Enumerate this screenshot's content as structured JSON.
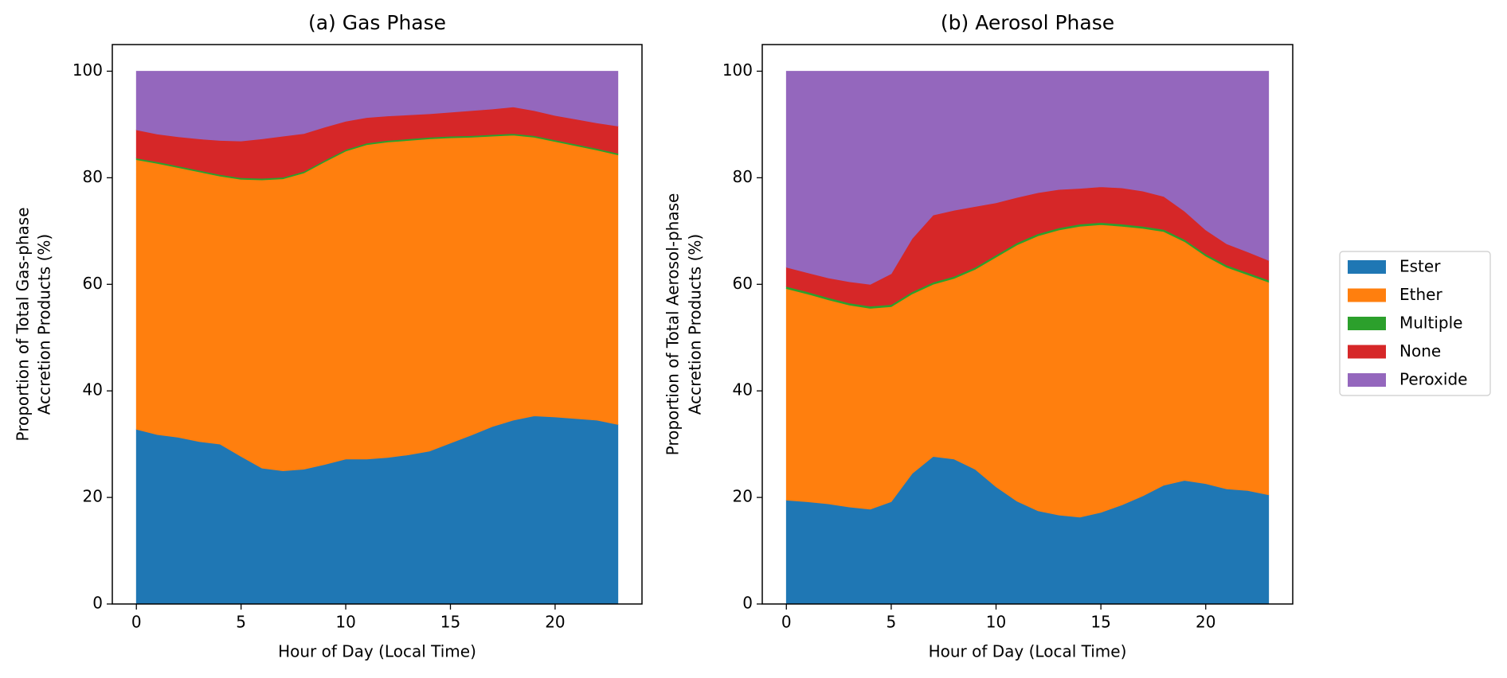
{
  "chart_data": [
    {
      "type": "stacked-area",
      "title": "(a) Gas Phase",
      "xlabel": "Hour of Day (Local Time)",
      "ylabel": [
        "Proportion of Total Gas-phase",
        "Accretion Products (%)"
      ],
      "x": [
        0,
        1,
        2,
        3,
        4,
        5,
        6,
        7,
        8,
        9,
        10,
        11,
        12,
        13,
        14,
        15,
        16,
        17,
        18,
        19,
        20,
        21,
        22,
        23
      ],
      "xlim": [
        -1.15,
        24.15
      ],
      "xticks": [
        0,
        5,
        10,
        15,
        20
      ],
      "ylim": [
        0,
        105
      ],
      "yticks": [
        0,
        20,
        40,
        60,
        80,
        100
      ],
      "series": [
        {
          "name": "Ester",
          "color": "#1f77b4",
          "values": [
            32.8,
            31.8,
            31.3,
            30.5,
            30.0,
            27.7,
            25.5,
            25.0,
            25.3,
            26.2,
            27.2,
            27.2,
            27.5,
            28.0,
            28.7,
            30.2,
            31.7,
            33.3,
            34.5,
            35.3,
            35.1,
            34.8,
            34.5,
            33.7
          ]
        },
        {
          "name": "Ether",
          "color": "#ff7f0e",
          "values": [
            50.6,
            50.9,
            50.6,
            50.6,
            50.3,
            52.0,
            54.1,
            54.8,
            55.6,
            56.8,
            57.8,
            59.0,
            59.2,
            59.0,
            58.6,
            57.3,
            55.9,
            54.5,
            53.5,
            52.3,
            51.7,
            51.2,
            50.7,
            50.6
          ]
        },
        {
          "name": "Multiple",
          "color": "#2ca02c",
          "values": [
            0.3,
            0.3,
            0.3,
            0.3,
            0.3,
            0.3,
            0.3,
            0.3,
            0.3,
            0.3,
            0.3,
            0.3,
            0.3,
            0.3,
            0.3,
            0.3,
            0.3,
            0.3,
            0.3,
            0.3,
            0.3,
            0.3,
            0.3,
            0.3
          ]
        },
        {
          "name": "None",
          "color": "#d62728",
          "values": [
            5.3,
            5.2,
            5.5,
            5.9,
            6.4,
            6.9,
            7.4,
            7.7,
            7.1,
            6.2,
            5.3,
            4.8,
            4.6,
            4.5,
            4.4,
            4.5,
            4.7,
            4.8,
            5.0,
            4.7,
            4.6,
            4.7,
            4.8,
            5.1
          ]
        },
        {
          "name": "Peroxide",
          "color": "#9467bd",
          "values": [
            11.0,
            11.8,
            12.3,
            12.7,
            13.0,
            13.1,
            12.7,
            12.2,
            11.7,
            10.5,
            9.4,
            8.7,
            8.4,
            8.2,
            8.0,
            7.7,
            7.4,
            7.1,
            6.7,
            7.4,
            8.3,
            9.0,
            9.7,
            10.3
          ]
        }
      ]
    },
    {
      "type": "stacked-area",
      "title": "(b) Aerosol Phase",
      "xlabel": "Hour of Day (Local Time)",
      "ylabel": [
        "Proportion of Total Aerosol-phase",
        "Accretion Products (%)"
      ],
      "x": [
        0,
        1,
        2,
        3,
        4,
        5,
        6,
        7,
        8,
        9,
        10,
        11,
        12,
        13,
        14,
        15,
        16,
        17,
        18,
        19,
        20,
        21,
        22,
        23
      ],
      "xlim": [
        -1.15,
        24.15
      ],
      "xticks": [
        0,
        5,
        10,
        15,
        20
      ],
      "ylim": [
        0,
        105
      ],
      "yticks": [
        0,
        20,
        40,
        60,
        80,
        100
      ],
      "series": [
        {
          "color": "#1f77b4",
          "values": [
            19.5,
            19.2,
            18.8,
            18.2,
            17.8,
            19.2,
            24.5,
            27.7,
            27.2,
            25.3,
            22.0,
            19.3,
            17.5,
            16.7,
            16.3,
            17.2,
            18.6,
            20.3,
            22.3,
            23.2,
            22.6,
            21.6,
            21.3,
            20.5
          ]
        },
        {
          "color": "#ff7f0e",
          "values": [
            39.7,
            39.0,
            38.3,
            37.9,
            37.7,
            36.6,
            33.7,
            32.3,
            33.9,
            37.5,
            43.1,
            48.1,
            51.6,
            53.5,
            54.6,
            54.0,
            52.3,
            50.2,
            47.6,
            44.8,
            42.7,
            41.6,
            40.5,
            39.9
          ]
        },
        {
          "color": "#2ca02c",
          "values": [
            0.4,
            0.4,
            0.4,
            0.4,
            0.4,
            0.4,
            0.4,
            0.4,
            0.4,
            0.4,
            0.4,
            0.4,
            0.4,
            0.4,
            0.4,
            0.4,
            0.4,
            0.4,
            0.4,
            0.4,
            0.4,
            0.4,
            0.4,
            0.4
          ]
        },
        {
          "color": "#d62728",
          "values": [
            3.6,
            3.6,
            3.7,
            4.0,
            4.1,
            5.8,
            10.0,
            12.6,
            12.4,
            11.4,
            9.8,
            8.5,
            7.7,
            7.2,
            6.7,
            6.7,
            6.8,
            6.6,
            6.2,
            5.3,
            4.5,
            4.0,
            3.9,
            3.7
          ]
        },
        {
          "color": "#9467bd",
          "values": [
            36.8,
            37.8,
            38.8,
            39.5,
            40.0,
            38.0,
            31.4,
            27.0,
            26.1,
            25.4,
            24.7,
            23.7,
            22.8,
            22.2,
            22.0,
            21.7,
            21.9,
            22.5,
            23.5,
            26.3,
            29.8,
            32.4,
            33.9,
            35.5
          ]
        }
      ]
    }
  ],
  "legend": "right"
}
